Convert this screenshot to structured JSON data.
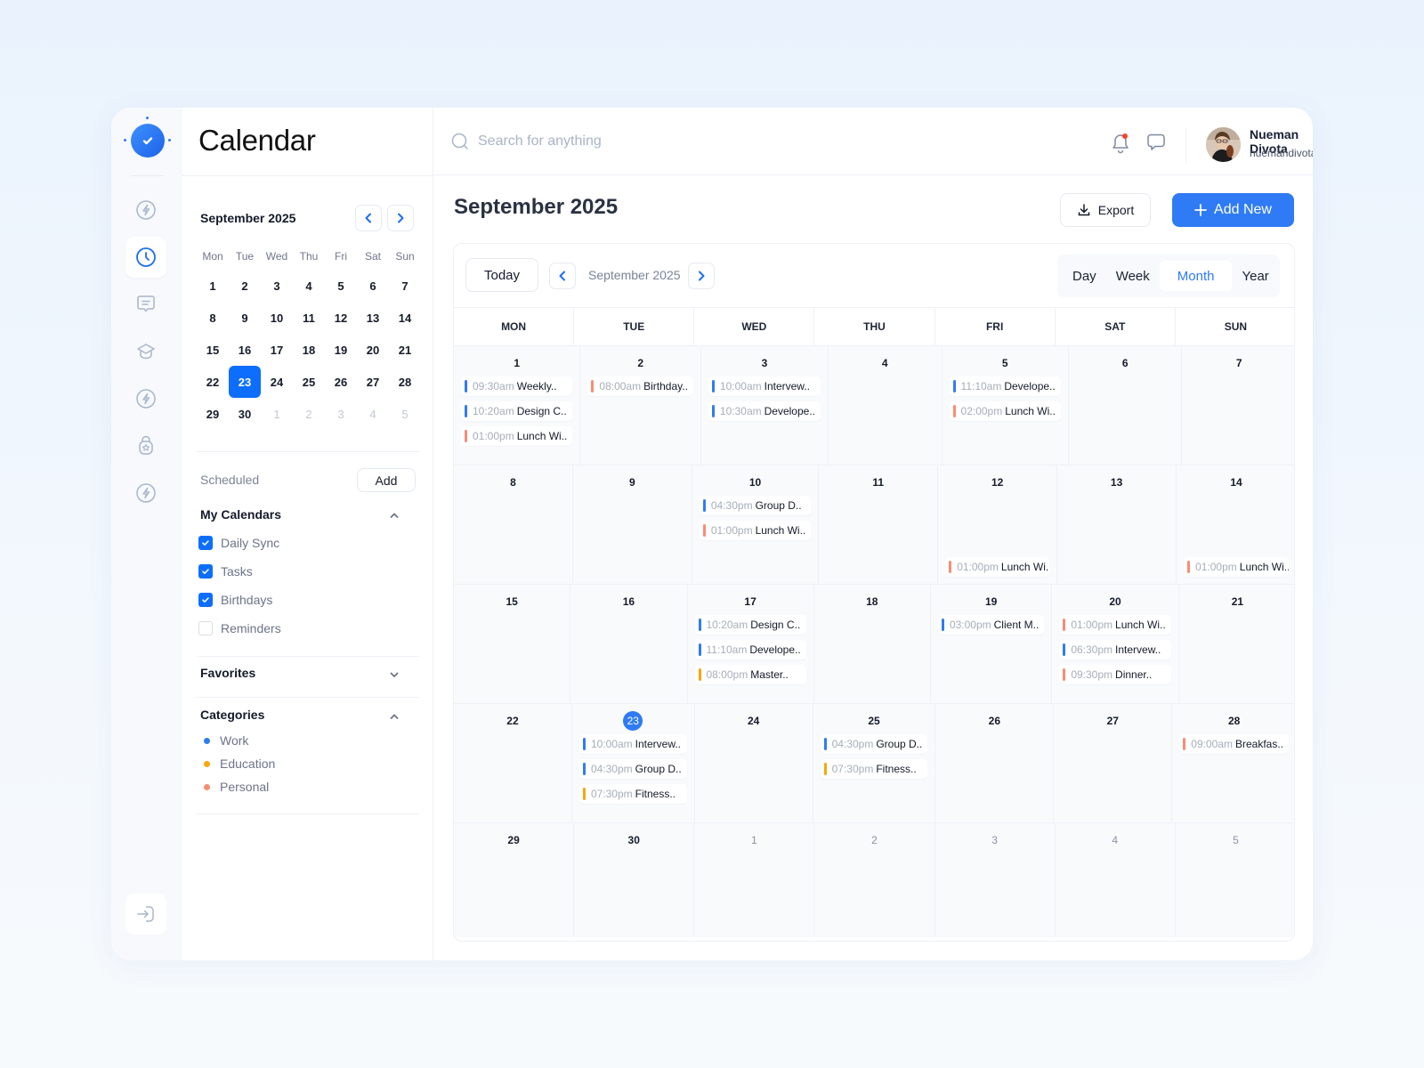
{
  "app": {
    "title": "Calendar"
  },
  "rail": {
    "items": [
      {
        "icon": "bolt-icon",
        "active": false
      },
      {
        "icon": "clock-icon",
        "active": true
      },
      {
        "icon": "message-icon",
        "active": false
      },
      {
        "icon": "graduation-cap-icon",
        "active": false
      },
      {
        "icon": "bolt-icon",
        "active": false
      },
      {
        "icon": "badge-lock-icon",
        "active": false
      },
      {
        "icon": "bolt-icon",
        "active": false
      }
    ],
    "logout_icon": "logout-icon"
  },
  "search": {
    "placeholder": "Search for anything"
  },
  "user": {
    "name": "Nueman Divota",
    "email": "nuemandivota@gmail.com"
  },
  "notifications": {
    "has_unread": true
  },
  "mini_calendar": {
    "title": "September 2025",
    "weekdays": [
      "Mon",
      "Tue",
      "Wed",
      "Thu",
      "Fri",
      "Sat",
      "Sun"
    ],
    "days": [
      "1",
      "2",
      "3",
      "4",
      "5",
      "6",
      "7",
      "8",
      "9",
      "10",
      "11",
      "12",
      "13",
      "14",
      "15",
      "16",
      "17",
      "18",
      "19",
      "20",
      "21",
      "22",
      "23",
      "24",
      "25",
      "26",
      "27",
      "28",
      "29",
      "30",
      "1",
      "2",
      "3",
      "4",
      "5"
    ],
    "selected": "23"
  },
  "scheduled": {
    "label": "Scheduled",
    "add_label": "Add"
  },
  "my_calendars": {
    "title": "My Calendars",
    "items": [
      {
        "label": "Daily Sync",
        "checked": true
      },
      {
        "label": "Tasks",
        "checked": true
      },
      {
        "label": "Birthdays",
        "checked": true
      },
      {
        "label": "Reminders",
        "checked": false
      }
    ]
  },
  "favorites": {
    "title": "Favorites"
  },
  "categories": {
    "title": "Categories",
    "items": [
      {
        "label": "Work",
        "color": "#2f7bf5"
      },
      {
        "label": "Education",
        "color": "#f7a70a"
      },
      {
        "label": "Personal",
        "color": "#f98c74"
      }
    ]
  },
  "main": {
    "title": "September 2025",
    "export_label": "Export",
    "add_new_label": "Add New",
    "today_label": "Today",
    "current_month": "September 2025",
    "views": [
      "Day",
      "Week",
      "Month",
      "Year"
    ],
    "active_view": "Month",
    "weekdays": [
      "MON",
      "TUE",
      "WED",
      "THU",
      "FRI",
      "SAT",
      "SUN"
    ]
  },
  "colors": {
    "work": "#2f7bf5",
    "education": "#f7a70a",
    "personal": "#f98c74",
    "accent": "#2f7bf5"
  },
  "weeks": [
    [
      {
        "day": "1",
        "events": [
          {
            "time": "09:30am",
            "title": "Weekly..",
            "cat": "work"
          },
          {
            "time": "10:20am",
            "title": "Design C..",
            "cat": "work"
          },
          {
            "time": "01:00pm",
            "title": "Lunch Wi..",
            "cat": "personal"
          }
        ]
      },
      {
        "day": "2",
        "events": [
          {
            "time": "08:00am",
            "title": "Birthday..",
            "cat": "personal"
          }
        ]
      },
      {
        "day": "3",
        "events": [
          {
            "time": "10:00am",
            "title": "Intervew..",
            "cat": "work"
          },
          {
            "time": "10:30am",
            "title": "Develope..",
            "cat": "work"
          }
        ]
      },
      {
        "day": "4",
        "events": []
      },
      {
        "day": "5",
        "events": [
          {
            "time": "11:10am",
            "title": "Develope..",
            "cat": "work"
          },
          {
            "time": "02:00pm",
            "title": "Lunch Wi..",
            "cat": "personal"
          }
        ]
      },
      {
        "day": "6",
        "events": []
      },
      {
        "day": "7",
        "events": []
      }
    ],
    [
      {
        "day": "8",
        "events": []
      },
      {
        "day": "9",
        "events": []
      },
      {
        "day": "10",
        "events": [
          {
            "time": "04:30pm",
            "title": "Group D..",
            "cat": "work"
          },
          {
            "time": "01:00pm",
            "title": "Lunch Wi..",
            "cat": "personal"
          }
        ]
      },
      {
        "day": "11",
        "events": []
      },
      {
        "day": "12",
        "bottom": true,
        "events": [
          {
            "time": "01:00pm",
            "title": "Lunch Wi..",
            "cat": "personal"
          }
        ]
      },
      {
        "day": "13",
        "events": []
      },
      {
        "day": "14",
        "bottom": true,
        "events": [
          {
            "time": "01:00pm",
            "title": "Lunch Wi..",
            "cat": "personal"
          }
        ]
      }
    ],
    [
      {
        "day": "15",
        "events": []
      },
      {
        "day": "16",
        "events": []
      },
      {
        "day": "17",
        "events": [
          {
            "time": "10:20am",
            "title": "Design C..",
            "cat": "work"
          },
          {
            "time": "11:10am",
            "title": "Develope..",
            "cat": "work"
          },
          {
            "time": "08:00pm",
            "title": "Master..",
            "cat": "education"
          }
        ]
      },
      {
        "day": "18",
        "events": []
      },
      {
        "day": "19",
        "events": [
          {
            "time": "03:00pm",
            "title": "Client M..",
            "cat": "work"
          }
        ]
      },
      {
        "day": "20",
        "events": [
          {
            "time": "01:00pm",
            "title": "Lunch Wi..",
            "cat": "personal"
          },
          {
            "time": "06:30pm",
            "title": "Intervew..",
            "cat": "work"
          },
          {
            "time": "09:30pm",
            "title": "Dinner..",
            "cat": "personal"
          }
        ]
      },
      {
        "day": "21",
        "events": []
      }
    ],
    [
      {
        "day": "22",
        "events": []
      },
      {
        "day": "23",
        "today": true,
        "events": [
          {
            "time": "10:00am",
            "title": "Intervew..",
            "cat": "work"
          },
          {
            "time": "04:30pm",
            "title": "Group D..",
            "cat": "work"
          },
          {
            "time": "07:30pm",
            "title": "Fitness..",
            "cat": "education"
          }
        ]
      },
      {
        "day": "24",
        "events": []
      },
      {
        "day": "25",
        "events": [
          {
            "time": "04:30pm",
            "title": "Group D..",
            "cat": "work"
          },
          {
            "time": "07:30pm",
            "title": "Fitness..",
            "cat": "education"
          }
        ]
      },
      {
        "day": "26",
        "events": []
      },
      {
        "day": "27",
        "events": []
      },
      {
        "day": "28",
        "events": [
          {
            "time": "09:00am",
            "title": "Breakfas..",
            "cat": "personal"
          }
        ]
      }
    ],
    [
      {
        "day": "29",
        "events": []
      },
      {
        "day": "30",
        "events": []
      },
      {
        "day": "1",
        "muted": true,
        "events": []
      },
      {
        "day": "2",
        "muted": true,
        "events": []
      },
      {
        "day": "3",
        "muted": true,
        "events": []
      },
      {
        "day": "4",
        "muted": true,
        "events": []
      },
      {
        "day": "5",
        "muted": true,
        "events": []
      }
    ]
  ]
}
